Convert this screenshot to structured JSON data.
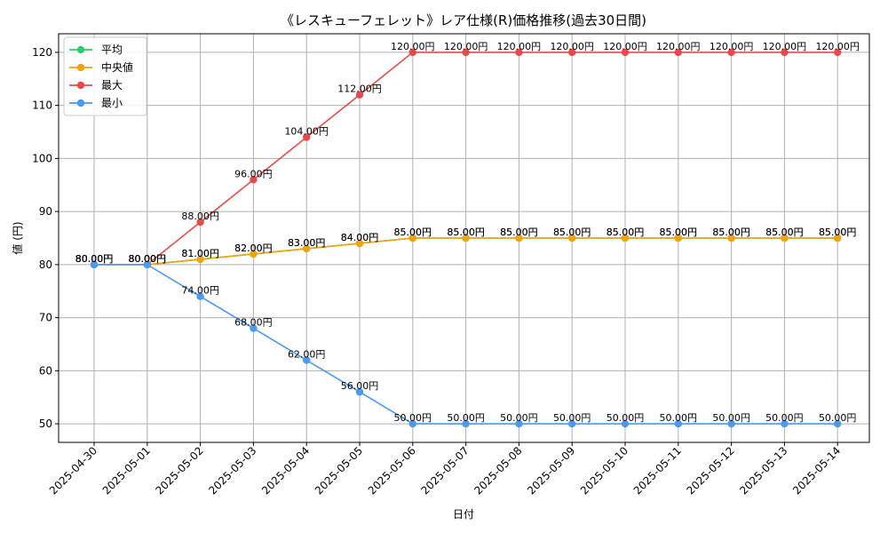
{
  "chart_data": {
    "type": "line",
    "title": "《レスキューフェレット》レア仕様(R)価格推移(過去30日間)",
    "xlabel": "日付",
    "ylabel": "値 (円)",
    "categories": [
      "2025-04-30",
      "2025-05-01",
      "2025-05-02",
      "2025-05-03",
      "2025-05-04",
      "2025-05-05",
      "2025-05-06",
      "2025-05-07",
      "2025-05-08",
      "2025-05-09",
      "2025-05-10",
      "2025-05-11",
      "2025-05-12",
      "2025-05-13",
      "2025-05-14"
    ],
    "ylim": [
      46.5,
      123.5
    ],
    "yticks": [
      50,
      60,
      70,
      80,
      90,
      100,
      110,
      120
    ],
    "grid": true,
    "legend_position": "top-left",
    "value_suffix": "円",
    "series": [
      {
        "name": "平均",
        "color": "#2ecc71",
        "values": [
          80,
          80,
          81,
          82,
          83,
          84,
          85,
          85,
          85,
          85,
          85,
          85,
          85,
          85,
          85
        ]
      },
      {
        "name": "中央値",
        "color": "#f0a30a",
        "values": [
          80,
          80,
          81,
          82,
          83,
          84,
          85,
          85,
          85,
          85,
          85,
          85,
          85,
          85,
          85
        ]
      },
      {
        "name": "最大",
        "color": "#e84a4a",
        "values": [
          80,
          80,
          88,
          96,
          104,
          112,
          120,
          120,
          120,
          120,
          120,
          120,
          120,
          120,
          120
        ]
      },
      {
        "name": "最小",
        "color": "#4a9af0",
        "values": [
          80,
          80,
          74,
          68,
          62,
          56,
          50,
          50,
          50,
          50,
          50,
          50,
          50,
          50,
          50
        ]
      }
    ]
  }
}
